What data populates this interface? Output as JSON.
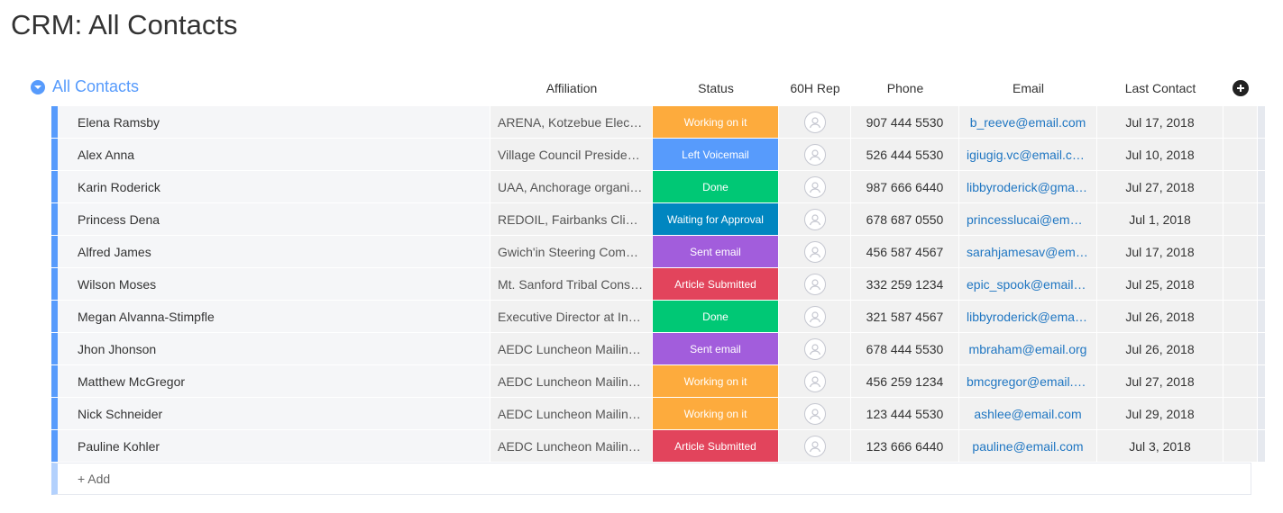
{
  "page": {
    "title": "CRM: All Contacts"
  },
  "group": {
    "label": "All Contacts",
    "color": "#579bfc"
  },
  "columns": {
    "affiliation": "Affiliation",
    "status": "Status",
    "rep": "60H Rep",
    "phone": "Phone",
    "email": "Email",
    "last_contact": "Last Contact"
  },
  "status_colors": {
    "Working on it": "#fdab3d",
    "Left Voicemail": "#579bfc",
    "Done": "#00c875",
    "Waiting for Approval": "#0086c0",
    "Sent email": "#a25ddc",
    "Article Submitted": "#e2445c"
  },
  "rows": [
    {
      "name": "Elena Ramsby",
      "affiliation": "ARENA, Kotzebue Electric",
      "status": "Working on it",
      "phone": "907 444 5530",
      "email": "b_reeve@email.com",
      "last_contact": "Jul 17, 2018"
    },
    {
      "name": "Alex Anna",
      "affiliation": "Village Council President, Igiugig",
      "status": "Left Voicemail",
      "phone": "526 444 5530",
      "email": "igiugig.vc@email.com",
      "last_contact": "Jul 10, 2018"
    },
    {
      "name": "Karin Roderick",
      "affiliation": "UAA, Anchorage organizer",
      "status": "Done",
      "phone": "987 666 6440",
      "email": "libbyroderick@gmail.com",
      "last_contact": "Jul 27, 2018"
    },
    {
      "name": "Princess Dena",
      "affiliation": "REDOIL, Fairbanks Climate Action",
      "status": "Waiting for Approval",
      "phone": "678 687 0550",
      "email": "princesslucai@email.com",
      "last_contact": "Jul 1, 2018"
    },
    {
      "name": "Alfred James",
      "affiliation": "Gwich'in Steering Committee",
      "status": "Sent email",
      "phone": "456 587 4567",
      "email": "sarahjamesav@email.com",
      "last_contact": "Jul 17, 2018"
    },
    {
      "name": "Wilson Moses",
      "affiliation": "Mt. Sanford Tribal Consortium",
      "status": "Article Submitted",
      "phone": "332 259 1234",
      "email": "epic_spook@email.com",
      "last_contact": "Jul 25, 2018"
    },
    {
      "name": "Megan Alvanna-Stimpfle",
      "affiliation": "Executive Director at Inuit Circumpolar",
      "status": "Done",
      "phone": "321 587 4567",
      "email": "libbyroderick@email.com",
      "last_contact": "Jul 26, 2018"
    },
    {
      "name": "Jhon Jhonson",
      "affiliation": "AEDC Luncheon Mailing List",
      "status": "Sent email",
      "phone": "678 444 5530",
      "email": "mbraham@email.org",
      "last_contact": "Jul 26, 2018"
    },
    {
      "name": "Matthew McGregor",
      "affiliation": "AEDC Luncheon Mailing List",
      "status": "Working on it",
      "phone": "456 259 1234",
      "email": "bmcgregor@email.org",
      "last_contact": "Jul 27, 2018"
    },
    {
      "name": "Nick Schneider",
      "affiliation": "AEDC Luncheon Mailing List",
      "status": "Working on it",
      "phone": "123 444 5530",
      "email": "ashlee@email.com",
      "last_contact": "Jul 29, 2018"
    },
    {
      "name": "Pauline Kohler",
      "affiliation": "AEDC Luncheon Mailing List",
      "status": "Article Submitted",
      "phone": "123 666 6440",
      "email": "pauline@email.com",
      "last_contact": "Jul 3, 2018"
    }
  ],
  "add_row": {
    "label": "+ Add"
  }
}
